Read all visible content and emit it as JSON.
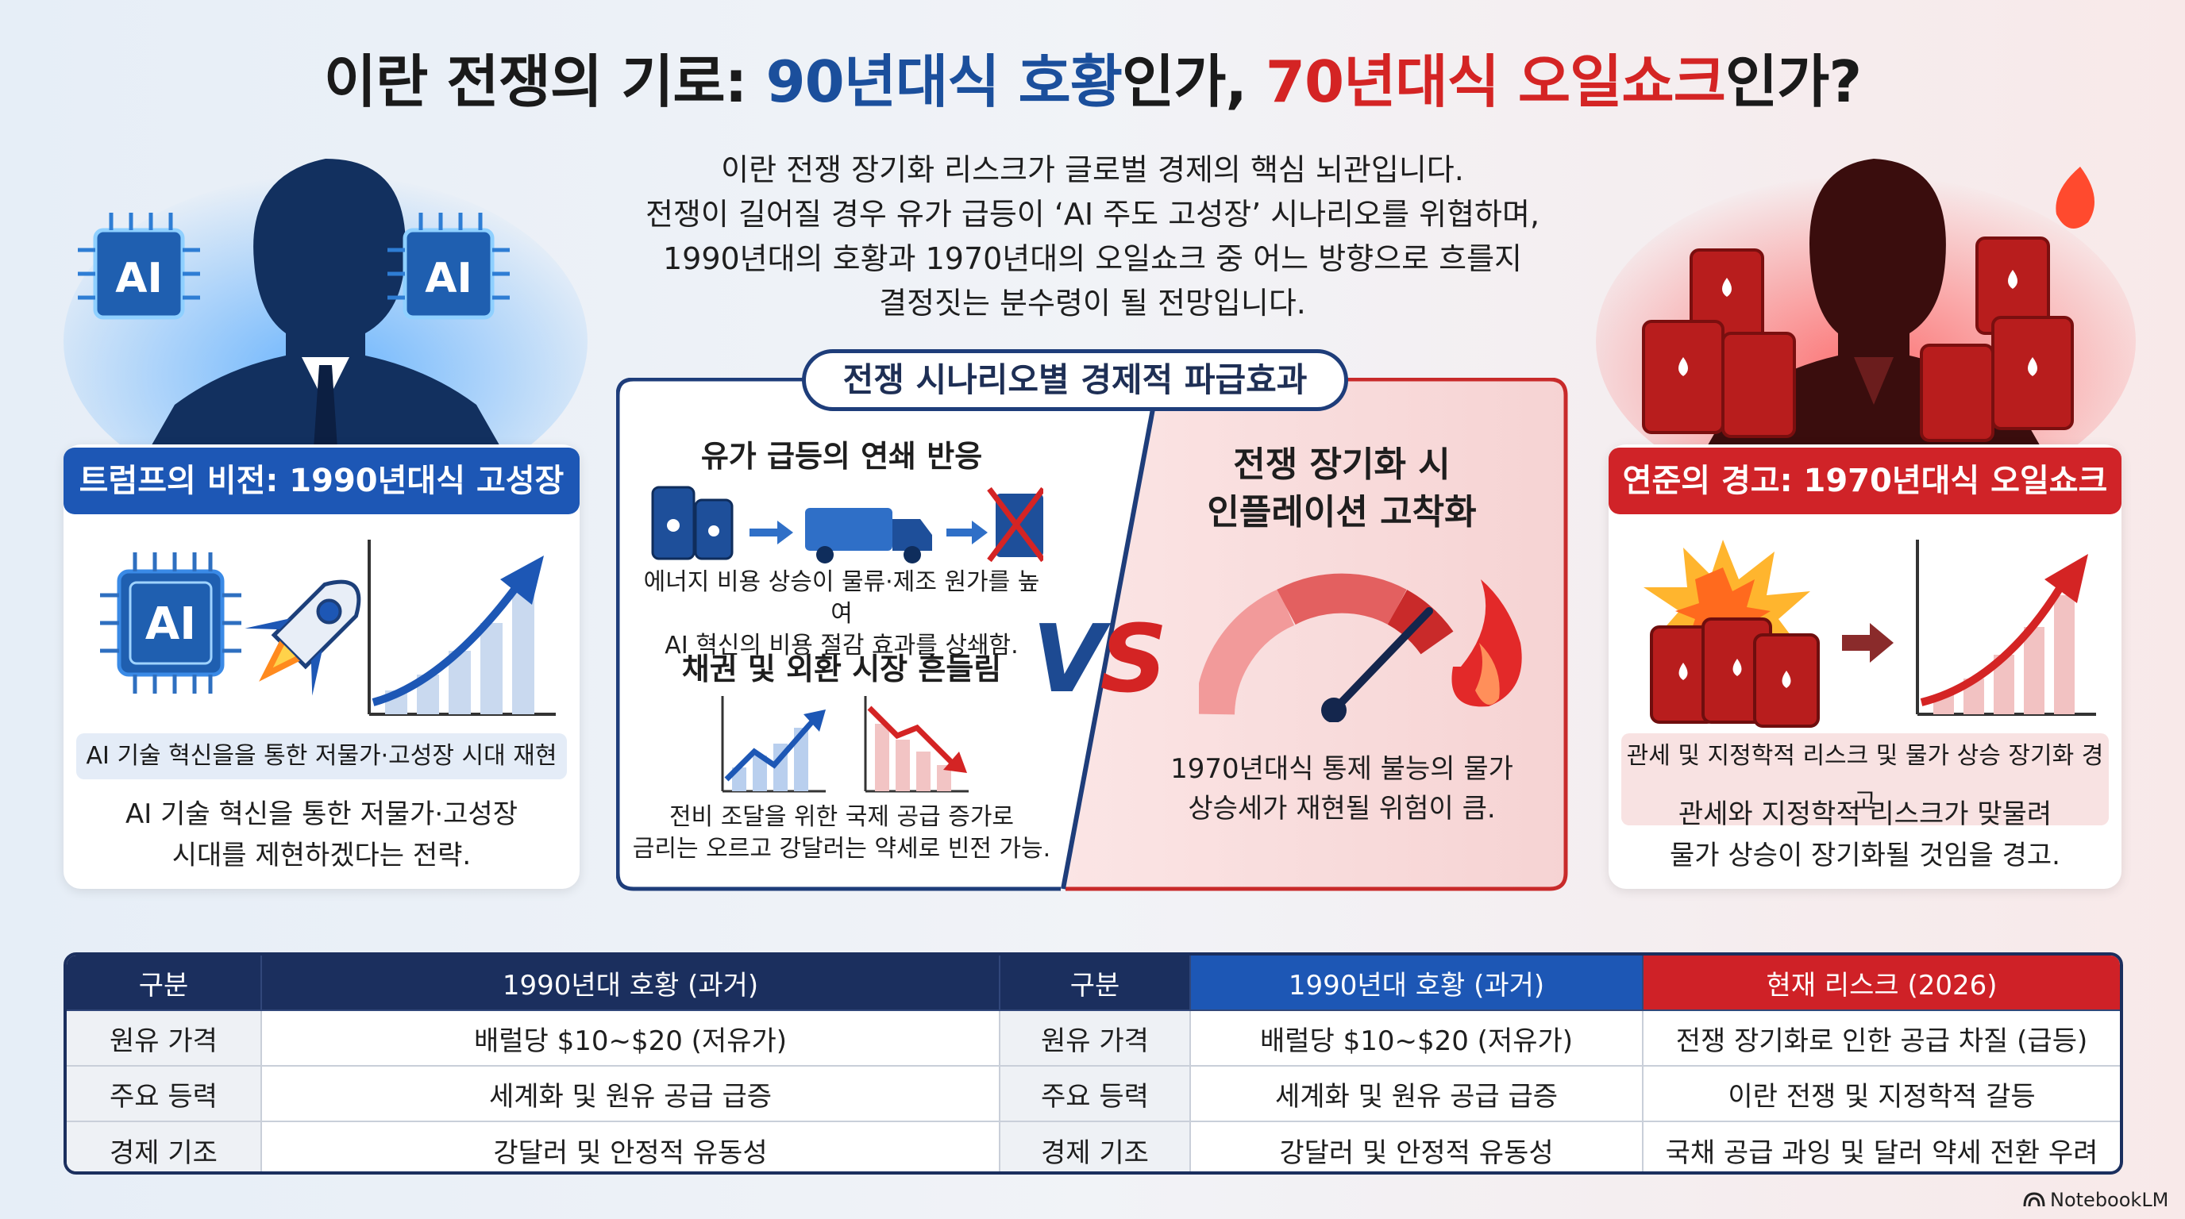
{
  "title": {
    "part1": "이란 전쟁의 기로: ",
    "part2": "90년대식 호황",
    "part3": "인가, ",
    "part4": "70년대식 오일쇼크",
    "part5": "인가?"
  },
  "intro": {
    "line1": "이란 전쟁 장기화 리스크가 글로벌 경제의 핵심 뇌관입니다.",
    "line2": "전쟁이 길어질 경우 유가 급등이 ‘AI 주도 고성장’ 시나리오를 위협하며,",
    "line3": "1990년대의 호황과 1970년대의 오일쇼크 중 어느 방향으로 흐를지",
    "line4": "결정짓는 분수령이 될 전망입니다."
  },
  "left": {
    "chip_label": "AI",
    "banner": "트럼프의 비전: 1990년대식 고성장",
    "pill": "AI 기술 혁신을을 통한 저물가·고성장 시대 재현",
    "desc1": "AI 기술 혁신을 통한 저물가·고성장",
    "desc2": "시대를 제현하겠다는 전략."
  },
  "right": {
    "banner": "연준의 경고: 1970년대식 오일쇼크",
    "pill": "관세 및 지정학적 리스크 및 물가 상승 장기화 경고",
    "desc1": "관세와 지정학적 리스크가 맞물려",
    "desc2": "물가 상승이 장기화될 것임을 경고."
  },
  "center": {
    "tab": "전쟁 시나리오별 경제적 파급효과",
    "left": {
      "heading1": "유가 급등의 연쇄 반응",
      "text1a": "에너지 비용 상승이 물류·제조 원가를 높여",
      "text1b": "AI 혁신의 비용 절감 효과를 상쇄함.",
      "heading2": "채권 및 외환 시장 흔들림",
      "text2a": "전비 조달을 위한 국제 공급 증가로",
      "text2b": "금리는 오르고 강달러는 약세로 빈전 가능."
    },
    "vs": {
      "v": "V",
      "s": "S"
    },
    "right": {
      "heading1": "전쟁 장기화 시",
      "heading2": "인플레이션 고착화",
      "text1": "1970년대식 통제 불능의 물가",
      "text2": "상승세가 재현될 위험이 큼."
    }
  },
  "table": {
    "headers": [
      "구분",
      "1990년대 호황 (과거)",
      "구분",
      "1990년대 호황 (과거)",
      "현재 리스크 (2026)"
    ],
    "rows": [
      [
        "원유 가격",
        "배럴당 $10~$20 (저유가)",
        "원유 가격",
        "배럴당 $10~$20 (저유가)",
        "전쟁 장기화로 인한 공급 차질 (급등)"
      ],
      [
        "주요 등력",
        "세계화 및 원유 공급 급증",
        "주요 등력",
        "세계화 및 원유 공급 급증",
        "이란 전쟁 및 지정학적 갈등"
      ],
      [
        "경제 기조",
        "강달러 및 안정적 유동성",
        "경제 기조",
        "강달러 및 안정적 유동성",
        "국채 공급 과잉 및 달러 약세 전환 우려"
      ]
    ]
  },
  "brand": "NotebookLM",
  "colors": {
    "blue": "#1b4f9c",
    "red": "#d42424",
    "navy": "#1b2f5e"
  }
}
